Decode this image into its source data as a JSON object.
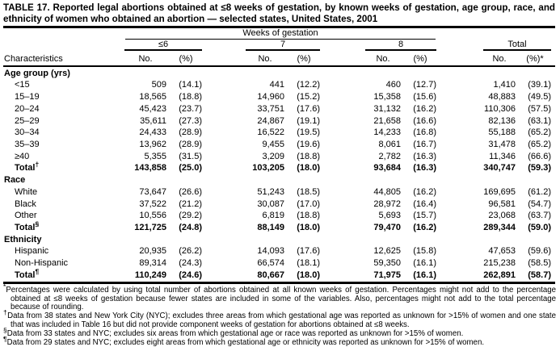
{
  "title": "TABLE 17. Reported legal abortions obtained at ≤8 weeks of gestation, by known weeks of gestation, age group, race, and ethnicity of women who obtained an abortion — selected states, United States, 2001",
  "table": {
    "stub_header": "Characteristics",
    "spanner": "Weeks of gestation",
    "groups": [
      {
        "label": "≤6",
        "sub": [
          "No.",
          "(%)"
        ]
      },
      {
        "label": "7",
        "sub": [
          "No.",
          "(%)"
        ]
      },
      {
        "label": "8",
        "sub": [
          "No.",
          "(%)"
        ]
      },
      {
        "label": "Total",
        "sub": [
          "No.",
          "(%)*"
        ]
      }
    ],
    "sections": [
      {
        "label": "Age group (yrs)",
        "rows": [
          {
            "label": "<15",
            "cells": [
              "509",
              "(14.1)",
              "441",
              "(12.2)",
              "460",
              "(12.7)",
              "1,410",
              "(39.1)"
            ]
          },
          {
            "label": "15–19",
            "cells": [
              "18,565",
              "(18.8)",
              "14,960",
              "(15.2)",
              "15,358",
              "(15.6)",
              "48,883",
              "(49.5)"
            ]
          },
          {
            "label": "20–24",
            "cells": [
              "45,423",
              "(23.7)",
              "33,751",
              "(17.6)",
              "31,132",
              "(16.2)",
              "110,306",
              "(57.5)"
            ]
          },
          {
            "label": "25–29",
            "cells": [
              "35,611",
              "(27.3)",
              "24,867",
              "(19.1)",
              "21,658",
              "(16.6)",
              "82,136",
              "(63.1)"
            ]
          },
          {
            "label": "30–34",
            "cells": [
              "24,433",
              "(28.9)",
              "16,522",
              "(19.5)",
              "14,233",
              "(16.8)",
              "55,188",
              "(65.2)"
            ]
          },
          {
            "label": "35–39",
            "cells": [
              "13,962",
              "(28.9)",
              "9,455",
              "(19.6)",
              "8,061",
              "(16.7)",
              "31,478",
              "(65.2)"
            ]
          },
          {
            "label": "≥40",
            "cells": [
              "5,355",
              "(31.5)",
              "3,209",
              "(18.8)",
              "2,782",
              "(16.3)",
              "11,346",
              "(66.6)"
            ]
          },
          {
            "label": "Total",
            "marker": "†",
            "total": true,
            "cells": [
              "143,858",
              "(25.0)",
              "103,205",
              "(18.0)",
              "93,684",
              "(16.3)",
              "340,747",
              "(59.3)"
            ]
          }
        ]
      },
      {
        "label": "Race",
        "rows": [
          {
            "label": "White",
            "cells": [
              "73,647",
              "(26.6)",
              "51,243",
              "(18.5)",
              "44,805",
              "(16.2)",
              "169,695",
              "(61.2)"
            ]
          },
          {
            "label": "Black",
            "cells": [
              "37,522",
              "(21.2)",
              "30,087",
              "(17.0)",
              "28,972",
              "(16.4)",
              "96,581",
              "(54.7)"
            ]
          },
          {
            "label": "Other",
            "cells": [
              "10,556",
              "(29.2)",
              "6,819",
              "(18.8)",
              "5,693",
              "(15.7)",
              "23,068",
              "(63.7)"
            ]
          },
          {
            "label": "Total",
            "marker": "§",
            "total": true,
            "cells": [
              "121,725",
              "(24.8)",
              "88,149",
              "(18.0)",
              "79,470",
              "(16.2)",
              "289,344",
              "(59.0)"
            ]
          }
        ]
      },
      {
        "label": "Ethnicity",
        "rows": [
          {
            "label": "Hispanic",
            "cells": [
              "20,935",
              "(26.2)",
              "14,093",
              "(17.6)",
              "12,625",
              "(15.8)",
              "47,653",
              "(59.6)"
            ]
          },
          {
            "label": "Non-Hispanic",
            "cells": [
              "89,314",
              "(24.3)",
              "66,574",
              "(18.1)",
              "59,350",
              "(16.1)",
              "215,238",
              "(58.5)"
            ]
          },
          {
            "label": "Total",
            "marker": "¶",
            "total": true,
            "cells": [
              "110,249",
              "(24.6)",
              "80,667",
              "(18.0)",
              "71,975",
              "(16.1)",
              "262,891",
              "(58.7)"
            ]
          }
        ]
      }
    ]
  },
  "footnotes": [
    {
      "marker": "*",
      "text": "Percentages were calculated by using total number of abortions obtained at all known weeks of gestation. Percentages might not add to the percentage obtained at ≤8 weeks of gestation because fewer states are included in some of the variables. Also, percentages might not add to the total percentage because of rounding."
    },
    {
      "marker": "†",
      "text": "Data from 38 states and New York City (NYC); excludes three areas from which gestational age was reported as unknown for >15% of women and one state that was included in Table 16 but did not provide component weeks of gestation for abortions obtained at ≤8 weeks."
    },
    {
      "marker": "§",
      "text": "Data from 33 states and NYC; excludes six areas from which gestational age or race was reported as unknown for >15% of women."
    },
    {
      "marker": "¶",
      "text": "Data from 29 states and NYC; excludes eight areas from which gestational age or ethnicity was reported as unknown for >15% of women."
    }
  ]
}
